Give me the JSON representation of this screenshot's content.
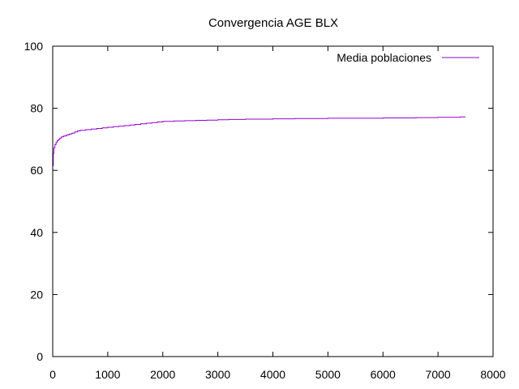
{
  "chart_data": {
    "type": "line",
    "title": "Convergencia AGE BLX",
    "xlabel": "",
    "ylabel": "",
    "xlim": [
      0,
      8000
    ],
    "ylim": [
      0,
      100
    ],
    "x_ticks": [
      0,
      1000,
      2000,
      3000,
      4000,
      5000,
      6000,
      7000,
      8000
    ],
    "y_ticks": [
      0,
      20,
      40,
      60,
      80,
      100
    ],
    "grid": false,
    "legend": "top-right",
    "series": [
      {
        "name": "Media poblaciones",
        "color": "#9400d3",
        "step": true,
        "x": [
          0,
          10,
          20,
          40,
          60,
          80,
          100,
          130,
          160,
          200,
          250,
          300,
          350,
          400,
          450,
          500,
          600,
          700,
          800,
          900,
          1000,
          1100,
          1200,
          1300,
          1400,
          1500,
          1600,
          1700,
          1800,
          1900,
          2000,
          2200,
          2400,
          2600,
          2800,
          3000,
          3200,
          3500,
          4000,
          4400,
          5000,
          6000,
          6600,
          7000,
          7400,
          7500
        ],
        "y": [
          61.5,
          65.5,
          67.3,
          68.3,
          69.0,
          69.5,
          69.9,
          70.4,
          70.8,
          71.1,
          71.4,
          71.7,
          72.0,
          72.4,
          72.7,
          72.9,
          73.1,
          73.3,
          73.5,
          73.7,
          73.9,
          74.1,
          74.2,
          74.4,
          74.6,
          74.8,
          75.0,
          75.2,
          75.4,
          75.6,
          75.8,
          75.9,
          76.0,
          76.1,
          76.2,
          76.3,
          76.4,
          76.5,
          76.6,
          76.7,
          76.8,
          76.9,
          77.0,
          77.1,
          77.2,
          77.2
        ]
      }
    ]
  }
}
